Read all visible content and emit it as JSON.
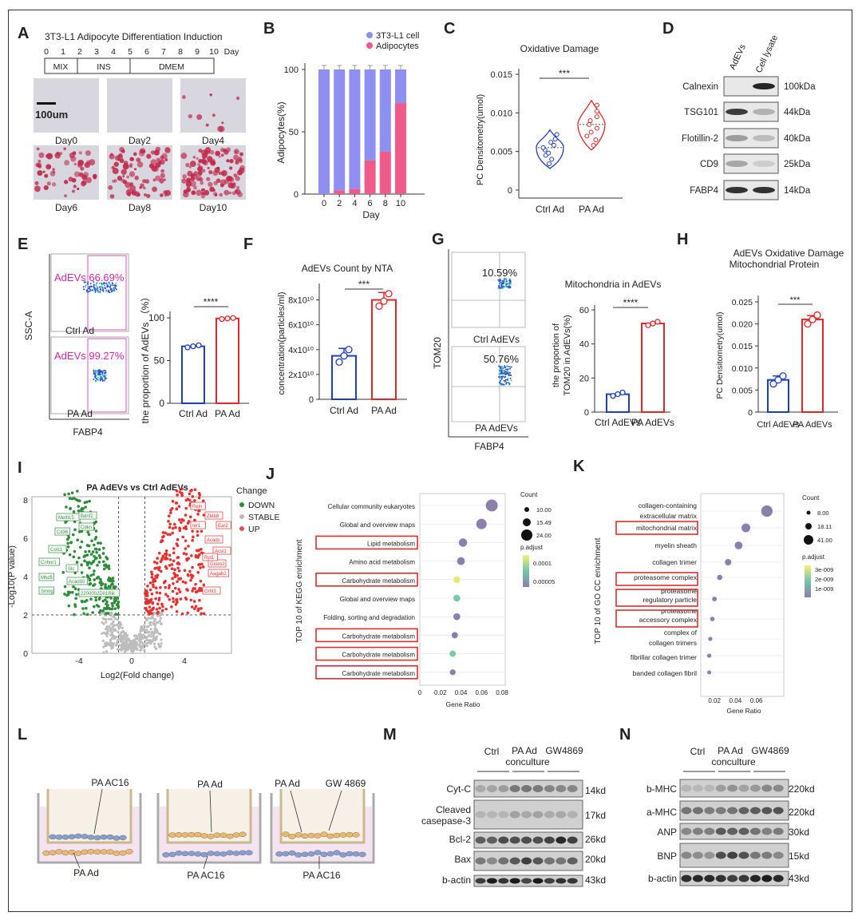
{
  "colors": {
    "blue": "#1f3fbf",
    "red": "#e02828",
    "lav": "#8f8ff2",
    "pink": "#ee5a8a",
    "magenta": "#d426a8",
    "green": "#2e8b3a",
    "grey": "#bdbdbd",
    "box": "#d9302c",
    "micro": "#d8d6df"
  },
  "panel_letters": [
    "A",
    "B",
    "C",
    "D",
    "E",
    "F",
    "G",
    "H",
    "I",
    "J",
    "K",
    "L",
    "M",
    "N"
  ],
  "a": {
    "title": "3T3-L1 Adipocyte Differentiation Induction",
    "ticks": [
      "0",
      "1",
      "2",
      "3",
      "4",
      "5",
      "6",
      "7",
      "8",
      "9",
      "10",
      "Day"
    ],
    "phases": [
      "MIX",
      "INS",
      "DMEM"
    ],
    "scale": "100um",
    "days": [
      "Day0",
      "Day2",
      "Day4",
      "Day6",
      "Day8",
      "Day10"
    ]
  },
  "b": {
    "legend": [
      "3T3-L1 cell",
      "Adipocytes"
    ],
    "yticks": [
      "100",
      "50",
      "0"
    ]
  },
  "c": {
    "title": "Oxidative Damage",
    "sig": "***",
    "yticks": [
      "0.015",
      "0.010",
      "0.005",
      "0"
    ]
  },
  "d": {
    "lanes": [
      "AdEVs",
      "Cell lysate"
    ],
    "rows": [
      "Calnexin",
      "TSG101",
      "Flotillin-2",
      "CD9",
      "FABP4"
    ],
    "kda": [
      "100kDa",
      "44kDa",
      "40kDa",
      "25kDa",
      "14kDa"
    ]
  },
  "e": {
    "gate1": "AdEVs 66.69%",
    "gate2": "AdEVs 99.27%",
    "lbl1": "Ctrl Ad",
    "lbl2": "PA  Ad",
    "yaxis": "SSC-A",
    "xaxis": "FABP4",
    "sig": "****",
    "yticks": [
      "100",
      "50",
      "0"
    ]
  },
  "f": {
    "title": "AdEVs Count by NTA",
    "sig": "***",
    "yticks": [
      "8x10¹⁰",
      "6x10¹⁰",
      "4x10¹⁰",
      "2x10¹⁰",
      "0"
    ]
  },
  "g": {
    "q1": "10.59%",
    "q2": "50.76%",
    "lbl1": "Ctrl AdEVs",
    "lbl2": "PA AdEVs",
    "yaxis": "TOM20",
    "xaxis": "FABP4",
    "title": "Mitochondria in AdEVs",
    "sig": "****",
    "yticks": [
      "60",
      "40",
      "20",
      "0"
    ]
  },
  "h": {
    "title1": "AdEVs Oxidative Damage",
    "title2": "Mitochondrial Protein",
    "sig": "***",
    "yticks": [
      "0.025",
      "0.020",
      "0.015",
      "0.010",
      "0.005",
      "0"
    ]
  },
  "i": {
    "title": "PA AdEVs vs Ctrl AdEVs",
    "legend_title": "Change",
    "legend": [
      "DOWN",
      "STABLE",
      "UP"
    ],
    "yticks": [
      "8",
      "6",
      "4",
      "2",
      "0"
    ],
    "xticks": [
      "-4",
      "0",
      "4"
    ],
    "down_genes": [
      "Mettl15",
      "Cd36",
      "Bdnf2",
      "Cdkn",
      "Col11",
      "Cnhor1",
      "Slc",
      "Mhd5",
      "Acad10",
      "Smog",
      "2200002D01Rik"
    ],
    "up_genes": [
      "Reln",
      "Zbtb8",
      "Ier1",
      "Ear2",
      "Acads",
      "Acsl1",
      "Grem2",
      "Rpl1",
      "Aagab2",
      "Grhl3"
    ]
  },
  "j": {
    "terms": [
      "Cellular community eukaryotes",
      "Global and overview maps",
      "Lipid metabolism",
      "Amino acid metabolism",
      "Carbohydrate metabolism",
      "Global and overview maps",
      "Folding, sorting and degradation",
      "Carbohydrate metabolism",
      "Carbohydrate metabolism",
      "Carbohydrate metabolism"
    ],
    "xticks": [
      "0",
      "0.02",
      "0.04",
      "0.06",
      "0.08"
    ],
    "count_title": "Count",
    "counts": [
      "10.00",
      "15.49",
      "24.00"
    ],
    "padj_title": "p.adjust",
    "padj": [
      "0.0001",
      "0.00005"
    ]
  },
  "k": {
    "terms": [
      "collagen-containing",
      "extracellular matrix",
      "mitochondrial matrix",
      "myelin sheath",
      "collagen trimer",
      "proteasome complex",
      "proteasome",
      "regulatory particle",
      "proteasome",
      "accessory complex",
      "complex of",
      "collagen trimers",
      "fibrillar collagen trimer",
      "banded collagen fibril"
    ],
    "xticks": [
      "0.02",
      "0.04",
      "0.06"
    ],
    "count_title": "Count",
    "counts": [
      "8.00",
      "18.11",
      "41.00"
    ],
    "padj_title": "p.adjust",
    "padj": [
      "3e-009",
      "2e-009",
      "1e-009"
    ]
  },
  "l": {
    "labels": [
      "PA AC16",
      "PA Ad",
      "PA Ad",
      "PA AC16",
      "PA Ad",
      "GW 4869",
      "PA AC16"
    ]
  },
  "m": {
    "groups": [
      "Ctrl",
      "PA Ad",
      "conculture",
      "GW4869"
    ],
    "rows": [
      "Cyt-C",
      "Cleaved",
      "casepase-3",
      "Bcl-2",
      "Bax",
      "b-actin"
    ],
    "kd": [
      "14kd",
      "17kd",
      "26kd",
      "20kd",
      "43kd"
    ]
  },
  "n": {
    "groups": [
      "Ctrl",
      "PA Ad",
      "conculture",
      "GW4869"
    ],
    "rows": [
      "b-MHC",
      "a-MHC",
      "ANP",
      "BNP",
      "b-actin"
    ],
    "kd": [
      "220kd",
      "220kd",
      "30kd",
      "15kd",
      "43kd"
    ]
  },
  "axis": {
    "adipocytes": "Adipocytes(%)",
    "day": "Day",
    "pc": "PC Densitometry(umol)",
    "grp_ctrl": "Ctrl Ad",
    "grp_pa": "PA  Ad",
    "prop_adevs": "the proportion of AdEVs （%）",
    "conc": "concentration(particles/ml)",
    "tom_1": "the proportion of",
    "tom_2": "TOM20 in AdEVs(%)",
    "ctrl_evs": "Ctrl AdEVs",
    "pa_evs": "PA AdEVs",
    "pc_h": "PC Densitometry(umol)",
    "log10p": "-Log10(P value)",
    "log2fc": "Log2(Fold change)",
    "gene_ratio": "Gene Ratio",
    "kegg": "TOP 10 of KEGG enrichment",
    "gocc": "TOP 10 of GO CC enrichment"
  },
  "chart_data": [
    {
      "panel": "B",
      "type": "bar",
      "stacked": true,
      "categories": [
        "0",
        "2",
        "4",
        "6",
        "8",
        "10"
      ],
      "series": [
        {
          "name": "3T3-L1 cell",
          "values": [
            100,
            97,
            96,
            73,
            66,
            27
          ]
        },
        {
          "name": "Adipocytes",
          "values": [
            0,
            3,
            4,
            27,
            34,
            73
          ]
        }
      ],
      "xlabel": "Day",
      "ylabel": "Adipocytes(%)",
      "ylim": [
        0,
        100
      ]
    },
    {
      "panel": "C",
      "type": "violin",
      "categories": [
        "Ctrl Ad",
        "PA  Ad"
      ],
      "points": [
        [
          0.0034,
          0.004,
          0.0045,
          0.0048,
          0.0052,
          0.0055,
          0.0058,
          0.0062,
          0.0066,
          0.0072
        ],
        [
          0.0058,
          0.0065,
          0.007,
          0.0075,
          0.008,
          0.0085,
          0.009,
          0.0095,
          0.0102,
          0.011
        ]
      ],
      "title": "Oxidative Damage",
      "ylabel": "PC Densitometry(umol)",
      "ylim": [
        0,
        0.015
      ]
    },
    {
      "panel": "E",
      "type": "bar",
      "categories": [
        "Ctrl Ad",
        "PA  Ad"
      ],
      "values": [
        66.69,
        99.27
      ],
      "points": [
        [
          65.5,
          66.7,
          67.9
        ],
        [
          98.6,
          99.3,
          99.8
        ]
      ],
      "ylabel": "the proportion of AdEVs (%)",
      "ylim": [
        0,
        110
      ]
    },
    {
      "panel": "F",
      "type": "bar",
      "categories": [
        "Ctrl Ad",
        "PA  Ad"
      ],
      "values": [
        35000000000.0,
        80000000000.0
      ],
      "points": [
        [
          30000000000.0,
          35000000000.0,
          40000000000.0
        ],
        [
          75000000000.0,
          79000000000.0,
          85000000000.0
        ]
      ],
      "title": "AdEVs Count by NTA",
      "ylabel": "concentration(particles/ml)",
      "ylim": [
        0,
        90000000000.0
      ]
    },
    {
      "panel": "G",
      "type": "bar",
      "categories": [
        "Ctrl AdEVs",
        "PA AdEVs"
      ],
      "values": [
        10.5,
        52
      ],
      "points": [
        [
          9.5,
          10.5,
          11.5
        ],
        [
          51,
          52,
          53
        ]
      ],
      "title": "Mitochondria in AdEVs",
      "ylabel": "the proportion of TOM20 in AdEVs(%)",
      "ylim": [
        0,
        65
      ]
    },
    {
      "panel": "H",
      "type": "bar",
      "categories": [
        "Ctrl AdEVs",
        "PA AdEVs"
      ],
      "values": [
        0.0073,
        0.021
      ],
      "points": [
        [
          0.0064,
          0.0073,
          0.0082
        ],
        [
          0.02,
          0.021,
          0.022
        ]
      ],
      "title": "AdEVs Oxidative Damage Mitochondrial Protein",
      "ylabel": "PC Densitometry(umol)",
      "ylim": [
        0,
        0.027
      ]
    },
    {
      "panel": "J",
      "type": "scatter",
      "y": [
        "Cellular community eukaryotes",
        "Global and overview maps",
        "Lipid metabolism",
        "Amino acid metabolism",
        "Carbohydrate metabolism",
        "Global and overview maps",
        "Folding, sorting and degradation",
        "Carbohydrate metabolism",
        "Carbohydrate metabolism",
        "Carbohydrate metabolism"
      ],
      "x": [
        0.07,
        0.06,
        0.042,
        0.04,
        0.036,
        0.036,
        0.036,
        0.034,
        0.032,
        0.032
      ],
      "count": [
        24,
        21,
        17,
        16,
        14,
        14,
        14,
        13,
        13,
        12
      ],
      "p_adjust": [
        2e-05,
        3e-05,
        4e-05,
        4e-05,
        0.00012,
        8e-05,
        4e-05,
        4e-05,
        0.0001,
        4e-05
      ],
      "xlabel": "Gene Ratio"
    },
    {
      "panel": "K",
      "type": "scatter",
      "y": [
        "collagen-containing extracellular matrix",
        "mitochondrial matrix",
        "myelin sheath",
        "collagen trimer",
        "proteasome complex",
        "proteasome regulatory particle",
        "proteasome accessory complex",
        "complex of collagen trimers",
        "fibrillar collagen trimer",
        "banded collagen fibril"
      ],
      "x": [
        0.07,
        0.05,
        0.043,
        0.033,
        0.025,
        0.02,
        0.018,
        0.016,
        0.015,
        0.015
      ],
      "count": [
        41,
        29,
        25,
        19,
        14,
        11,
        10,
        9,
        9,
        8
      ],
      "p_adjust": [
        1e-09,
        1.5e-09,
        1.5e-09,
        1.2e-09,
        1e-09,
        1e-09,
        1e-09,
        1e-09,
        1e-09,
        1e-09
      ],
      "xlabel": "Gene Ratio"
    }
  ]
}
